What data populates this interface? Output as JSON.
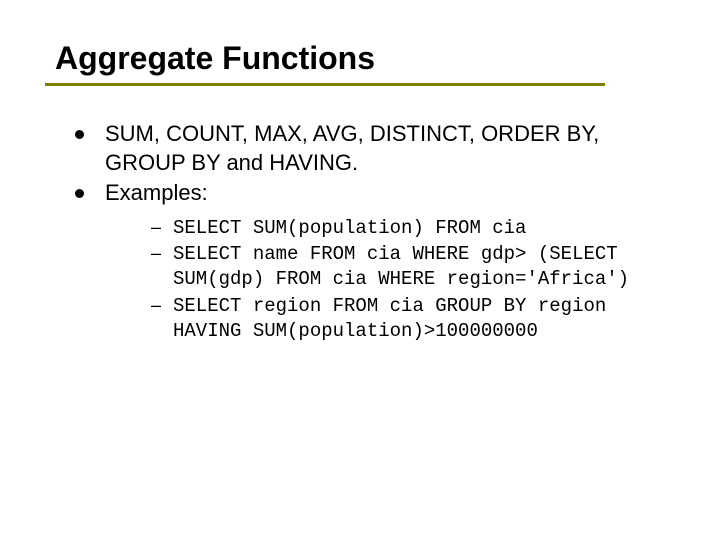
{
  "title": "Aggregate Functions",
  "accent_color": "#808000",
  "text_color": "#000000",
  "background_color": "#ffffff",
  "title_fontsize": 32,
  "body_fontsize": 22,
  "code_fontsize": 19,
  "bullets": [
    {
      "text": "SUM, COUNT, MAX, AVG, DISTINCT, ORDER BY, GROUP BY and HAVING."
    },
    {
      "text": "Examples:"
    }
  ],
  "examples": [
    {
      "code": "SELECT SUM(population) FROM cia"
    },
    {
      "code": "SELECT name FROM cia WHERE gdp> (SELECT SUM(gdp) FROM cia WHERE region='Africa')"
    },
    {
      "code": "SELECT region FROM cia GROUP BY region HAVING SUM(population)>100000000"
    }
  ]
}
